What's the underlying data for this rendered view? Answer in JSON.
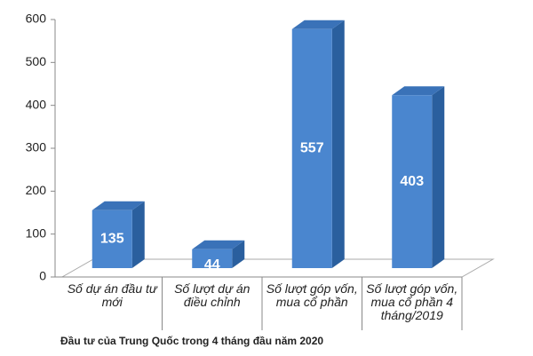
{
  "chart_data": {
    "type": "bar3d",
    "title": "Đầu tư của Trung Quốc trong 4 tháng đầu năm 2020",
    "categories": [
      "Số dự án đầu tư mới",
      "Số lượt dự án điều chỉnh",
      "Số lượt góp vốn, mua cổ phần",
      "Số lượt góp vốn, mua cổ phần 4 tháng/2019"
    ],
    "values": [
      135,
      44,
      557,
      403
    ],
    "color": "#4a86cf",
    "ylim": [
      0,
      600
    ],
    "yticks": [
      0,
      100,
      200,
      300,
      400,
      500,
      600
    ]
  }
}
